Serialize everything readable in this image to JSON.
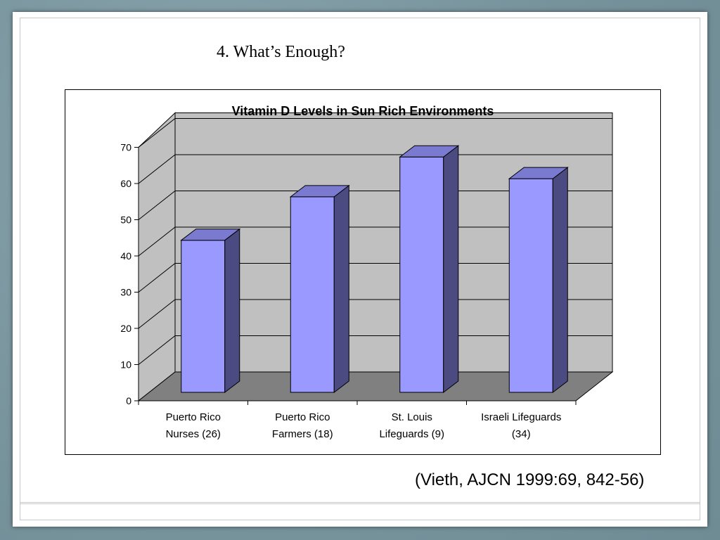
{
  "slide": {
    "title": "4.  What’s Enough?",
    "citation": "(Vieth, AJCN 1999:69, 842-56)"
  },
  "chart_data": {
    "type": "bar",
    "title": "Vitamin D Levels in Sun Rich Environments",
    "categories": [
      [
        "Puerto Rico",
        "Nurses (26)"
      ],
      [
        "Puerto Rico",
        "Farmers (18)"
      ],
      [
        "St. Louis",
        "Lifeguards (9)"
      ],
      [
        "Israeli Lifeguards",
        "(34)"
      ]
    ],
    "values": [
      42,
      54,
      65,
      59
    ],
    "ylim": [
      0,
      70
    ],
    "yticks": [
      0,
      10,
      20,
      30,
      40,
      50,
      60,
      70
    ],
    "grid": true,
    "legend": "none",
    "style": "3d-column",
    "colors": {
      "bar_front": "#9999ff",
      "bar_side": "#4b4b82",
      "bar_top": "#7a7ad0",
      "wall": "#c0c0c0",
      "floor": "#808080"
    }
  }
}
